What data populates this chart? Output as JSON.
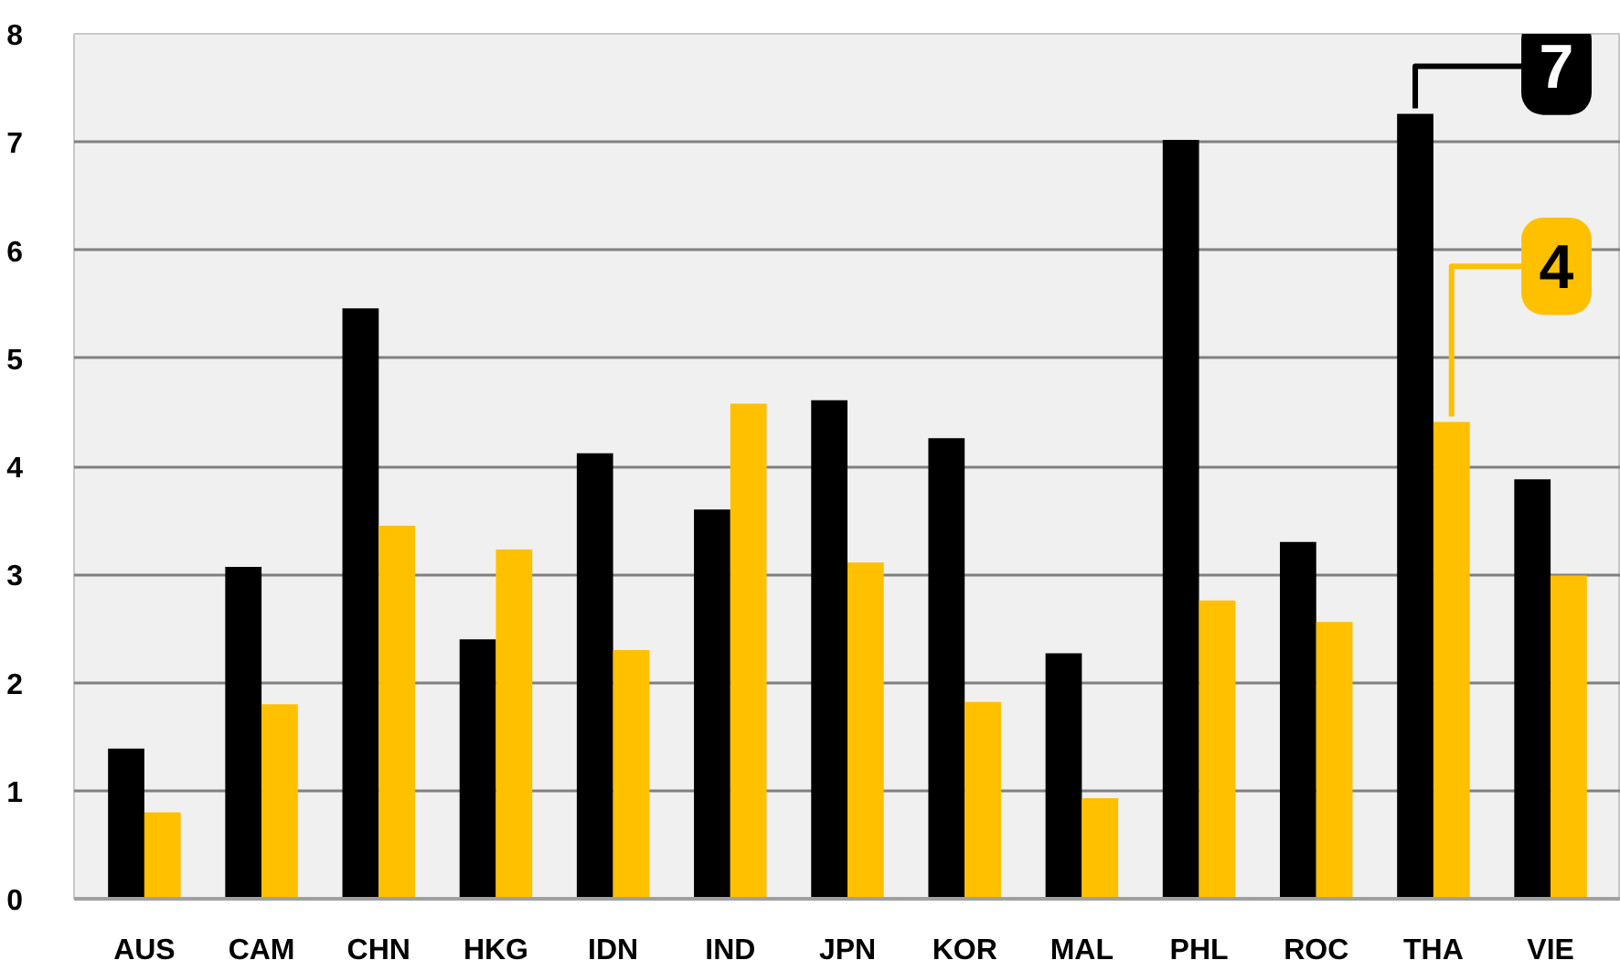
{
  "chart_data": {
    "type": "bar",
    "categories": [
      "AUS",
      "CAM",
      "CHN",
      "HKG",
      "IDN",
      "IND",
      "JPN",
      "KOR",
      "MAL",
      "PHL",
      "ROC",
      "THA",
      "VIE"
    ],
    "series": [
      {
        "color": "#000000",
        "values": [
          1.39,
          3.07,
          5.46,
          2.4,
          4.12,
          3.6,
          4.61,
          4.26,
          2.27,
          7.02,
          3.3,
          7.26,
          3.88
        ]
      },
      {
        "color": "#ffc000",
        "values": [
          0.8,
          1.8,
          3.45,
          3.23,
          2.3,
          4.58,
          3.11,
          1.82,
          0.93,
          2.76,
          2.56,
          4.41,
          2.99
        ]
      }
    ],
    "ylim": [
      0,
      8
    ],
    "yticks": [
      0,
      1,
      2,
      3,
      4,
      5,
      6,
      7,
      8
    ],
    "grid": "y",
    "annotations": [
      {
        "text": "7",
        "x": "THA",
        "y": 7.26
      },
      {
        "text": "4",
        "x": "THA",
        "y": 4.41
      }
    ]
  }
}
